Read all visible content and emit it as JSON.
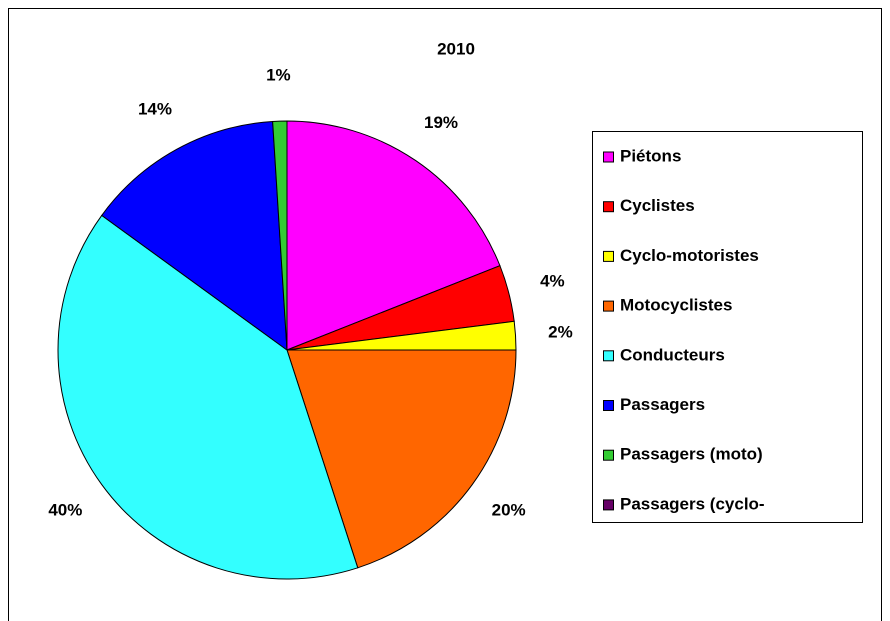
{
  "chart_data": {
    "type": "pie",
    "title": "2010",
    "categories": [
      "Piétons",
      "Cyclistes",
      "Cyclo-motoristes",
      "Motocyclistes",
      "Conducteurs",
      "Passagers",
      "Passagers (moto)",
      "Passagers (cyclo-"
    ],
    "values": [
      19,
      4,
      2,
      20,
      40,
      14,
      1,
      0
    ],
    "value_labels": [
      "19%",
      "4%",
      "2%",
      "20%",
      "40%",
      "14%",
      "1%",
      null
    ],
    "colors": [
      "#ff00ff",
      "#ff0000",
      "#ffff00",
      "#ff6600",
      "#33ffff",
      "#0000ff",
      "#33cc33",
      "#660066"
    ],
    "legend": "right"
  }
}
